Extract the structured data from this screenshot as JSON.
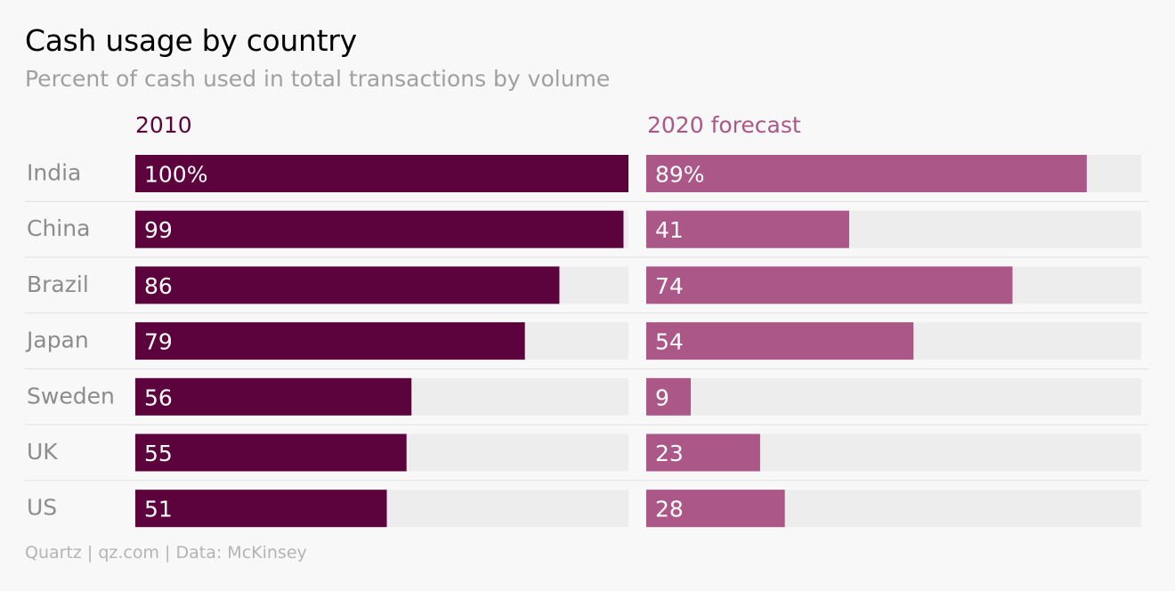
{
  "header": {
    "title": "Cash usage by country",
    "subtitle": "Percent of cash used in total transactions by volume"
  },
  "footer": {
    "source": "Quartz | qz.com | Data: McKinsey"
  },
  "colors": {
    "series_2010": "#5c033e",
    "series_2020": "#ab5787",
    "track": "#ededed",
    "row_divider": "#e0e0e0"
  },
  "chart_data": {
    "type": "bar",
    "orientation": "horizontal",
    "categories": [
      "India",
      "China",
      "Brazil",
      "Japan",
      "Sweden",
      "UK",
      "US"
    ],
    "value_suffix_first_row": "%",
    "xlim": [
      0,
      100
    ],
    "series": [
      {
        "name": "2010",
        "values": [
          100,
          99,
          86,
          79,
          56,
          55,
          51
        ]
      },
      {
        "name": "2020 forecast",
        "values": [
          89,
          41,
          74,
          54,
          9,
          23,
          28
        ]
      }
    ]
  }
}
